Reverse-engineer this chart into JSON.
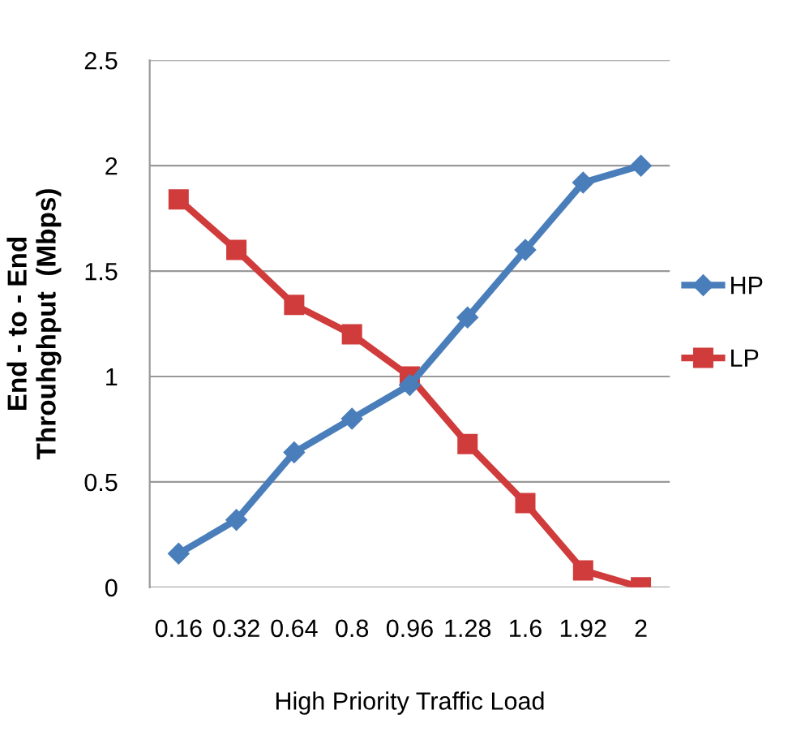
{
  "chart_data": {
    "type": "line",
    "xlabel": "High Priority Traffic Load",
    "ylabel": "End - to - End\nThrouhghput  (Mbps)",
    "categories": [
      "0.16",
      "0.32",
      "0.64",
      "0.8",
      "0.96",
      "1.28",
      "1.6",
      "1.92",
      "2"
    ],
    "series": [
      {
        "name": "HP",
        "color": "#4a7ebb",
        "marker": "diamond",
        "values": [
          0.16,
          0.32,
          0.64,
          0.8,
          0.96,
          1.28,
          1.6,
          1.92,
          2.0
        ]
      },
      {
        "name": "LP",
        "color": "#d03b3b",
        "marker": "square",
        "values": [
          1.84,
          1.6,
          1.34,
          1.2,
          1.0,
          0.68,
          0.4,
          0.08,
          0.0
        ]
      }
    ],
    "ylim": [
      0,
      2.5
    ],
    "yticks": [
      0,
      0.5,
      1,
      1.5,
      2,
      2.5
    ],
    "grid": "y",
    "legend": "right"
  }
}
